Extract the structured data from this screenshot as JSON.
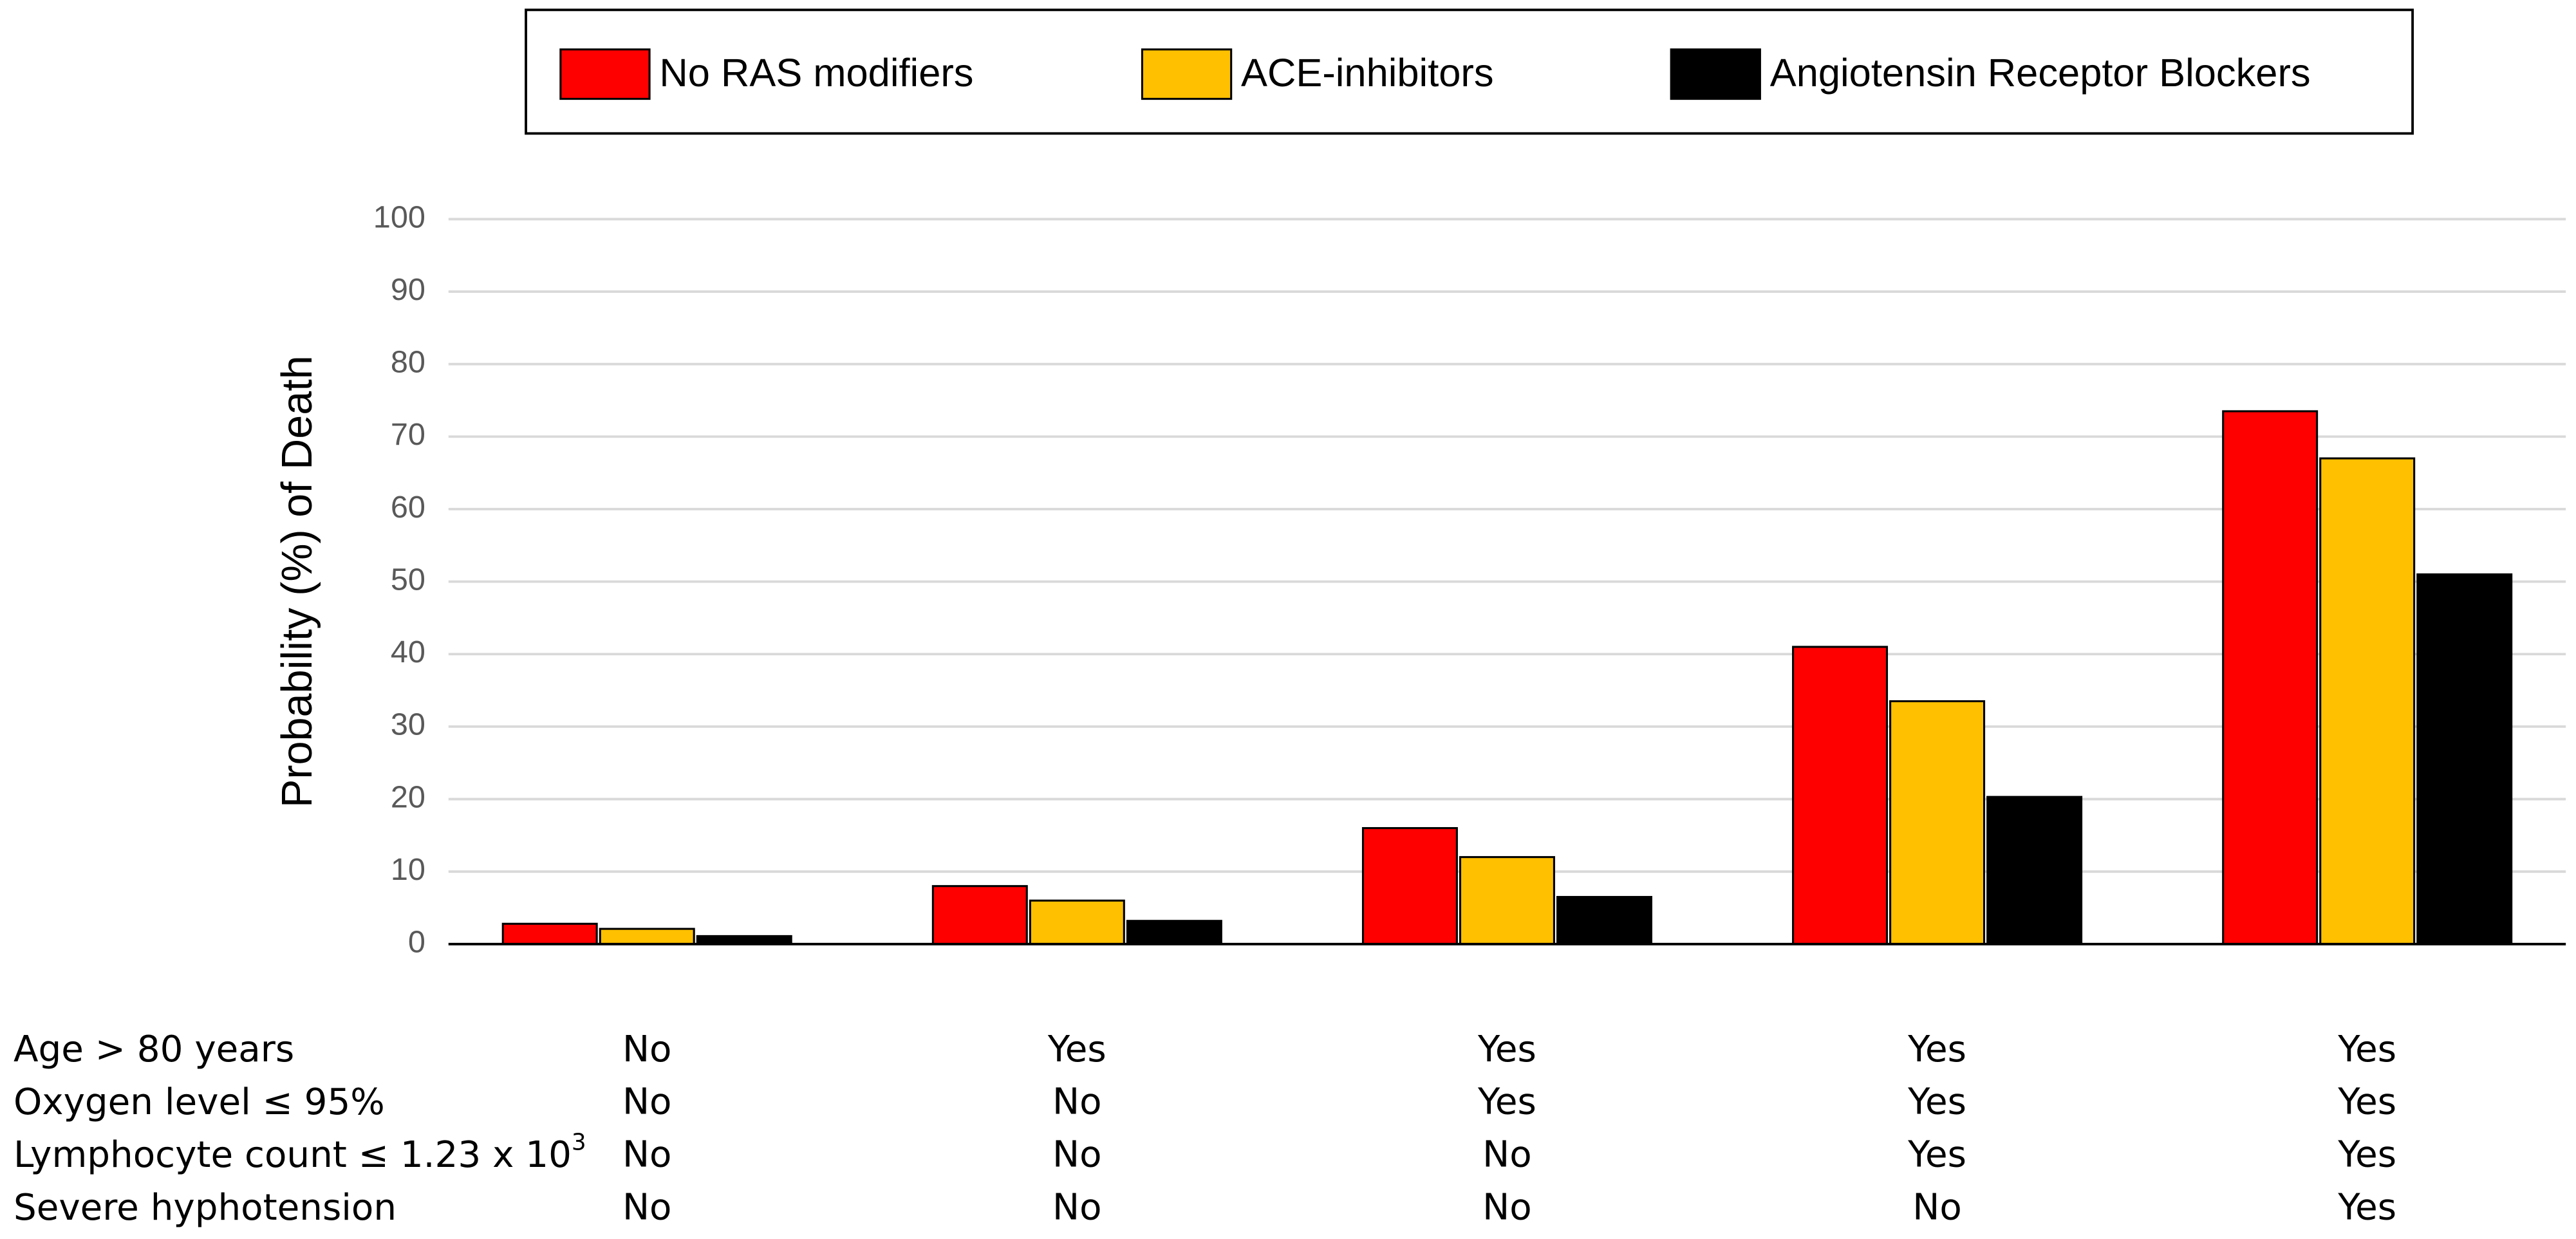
{
  "chart_data": {
    "type": "bar",
    "y_label": "Probability (%) of Death",
    "categories": [
      null,
      null,
      null,
      null,
      null
    ],
    "series": [
      {
        "name": "No RAS modifiers",
        "color": "#ff0000",
        "values": [
          2.8,
          8,
          16,
          41,
          73.5
        ]
      },
      {
        "name": "ACE-inhibitors",
        "color": "#ffc000",
        "values": [
          2.1,
          6,
          12,
          33.5,
          67
        ]
      },
      {
        "name": "Angiotensin Receptor Blockers",
        "color": "#000000",
        "values": [
          1.1,
          3.2,
          6.5,
          20.3,
          51
        ]
      }
    ],
    "ylim": [
      0,
      100
    ],
    "yticks": [
      0,
      10,
      20,
      30,
      40,
      50,
      60,
      70,
      80,
      90,
      100
    ],
    "grid": true,
    "legend": "top",
    "condition_rows": [
      {
        "label": [
          "Age > 80 years"
        ],
        "values": [
          "No",
          "Yes",
          "Yes",
          "Yes",
          "Yes"
        ]
      },
      {
        "label": [
          "Oxygen level ≤ 95%"
        ],
        "values": [
          "No",
          "No",
          "Yes",
          "Yes",
          "Yes"
        ]
      },
      {
        "label": [
          "Lymphocyte count ≤ 1.23 x 10",
          "3"
        ],
        "values": [
          "No",
          "No",
          "No",
          "Yes",
          "Yes"
        ]
      },
      {
        "label": [
          "Severe hyphotension"
        ],
        "values": [
          "No",
          "No",
          "No",
          "No",
          "Yes"
        ]
      }
    ]
  }
}
